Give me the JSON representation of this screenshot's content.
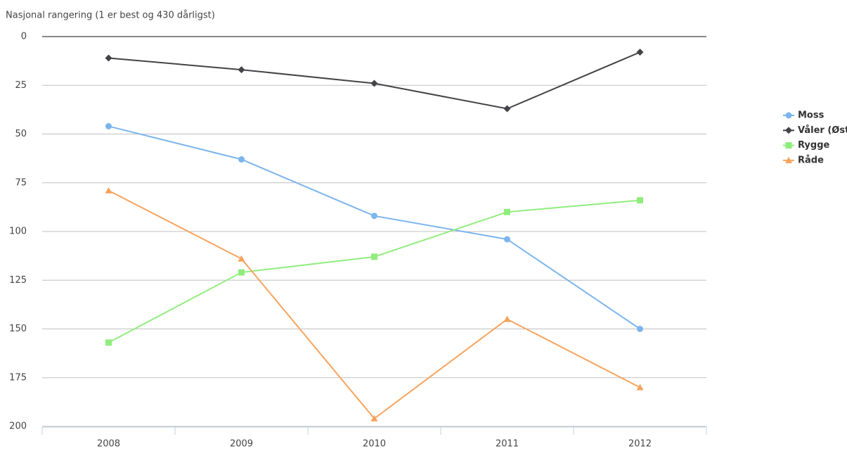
{
  "chart_data": {
    "type": "line",
    "y_axis_label": "Nasjonal rangering (1 er best og 430 dårligst)",
    "categories": [
      "2008",
      "2009",
      "2010",
      "2011",
      "2012"
    ],
    "series": [
      {
        "name": "Moss",
        "color": "#7cb5ec",
        "marker": "circle",
        "values": [
          46,
          63,
          92,
          104,
          150
        ]
      },
      {
        "name": "Våler (Østfold)",
        "color": "#434348",
        "marker": "diamond",
        "values": [
          11,
          17,
          24,
          37,
          8
        ]
      },
      {
        "name": "Rygge",
        "color": "#90ed7d",
        "marker": "square",
        "values": [
          157,
          121,
          113,
          90,
          84
        ]
      },
      {
        "name": "Råde",
        "color": "#f7a35c",
        "marker": "triangle",
        "values": [
          79,
          114,
          196,
          145,
          180
        ]
      }
    ],
    "ylim": [
      0,
      200
    ],
    "yticks": [
      0,
      25,
      50,
      75,
      100,
      125,
      150,
      175,
      200
    ],
    "reversed": true,
    "grid": true,
    "legend": "right"
  }
}
